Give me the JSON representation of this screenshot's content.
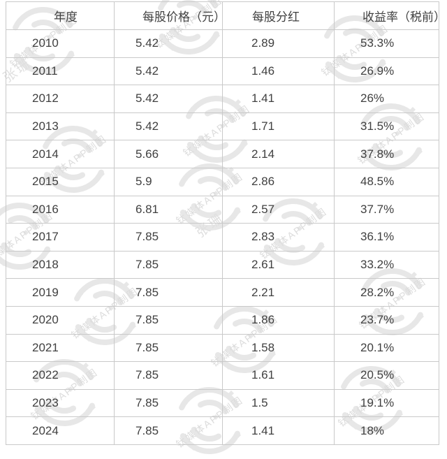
{
  "chart_data": {
    "type": "table",
    "columns": [
      "年度",
      "每股价格（元）",
      "每股分红",
      "收益率（税前）"
    ],
    "rows": [
      [
        "2010",
        "5.42",
        "2.89",
        "53.3%"
      ],
      [
        "2011",
        "5.42",
        "1.46",
        "26.9%"
      ],
      [
        "2012",
        "5.42",
        "1.41",
        "26%"
      ],
      [
        "2013",
        "5.42",
        "1.71",
        "31.5%"
      ],
      [
        "2014",
        "5.66",
        "2.14",
        "37.8%"
      ],
      [
        "2015",
        "5.9",
        "2.86",
        "48.5%"
      ],
      [
        "2016",
        "6.81",
        "2.57",
        "37.7%"
      ],
      [
        "2017",
        "7.85",
        "2.83",
        "36.1%"
      ],
      [
        "2018",
        "7.85",
        "2.61",
        "33.2%"
      ],
      [
        "2019",
        "7.85",
        "2.21",
        "28.2%"
      ],
      [
        "2020",
        "7.85",
        "1.86",
        "23.7%"
      ],
      [
        "2021",
        "7.85",
        "1.58",
        "20.1%"
      ],
      [
        "2022",
        "7.85",
        "1.61",
        "20.5%"
      ],
      [
        "2023",
        "7.85",
        "1.5",
        "19.1%"
      ],
      [
        "2024",
        "7.85",
        "1.41",
        "18%"
      ]
    ],
    "grid": true,
    "text_color": "#404040",
    "border_color": "#c9c9c9"
  },
  "watermark": {
    "logo_text": "钛媒体APP制图",
    "name_text": "张珊",
    "color": "#e7e7e7",
    "text_color": "#dcdcdc"
  }
}
